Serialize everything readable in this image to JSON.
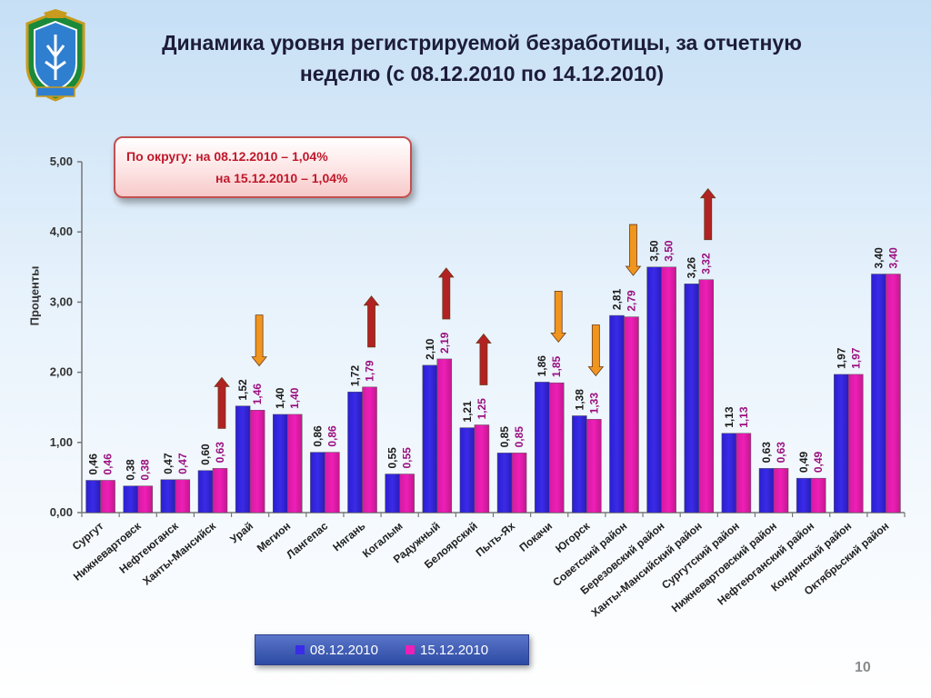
{
  "title": {
    "line1": "Динамика уровня регистрируемой безработицы, за отчетную",
    "line2": "неделю (с 08.12.2010 по 14.12.2010)"
  },
  "callout": {
    "line1": "По округу:  на 08.12.2010 – 1,04%",
    "line2": "на 15.12.2010 – 1,04%"
  },
  "page_number": "10",
  "colors": {
    "series1": "#3a2be8",
    "series2": "#ee1fb6",
    "label1": "#1c1c1c",
    "label2": "#9b0f7f",
    "arrow_up": "#b22222",
    "arrow_down": "#f0951e"
  },
  "chart_data": {
    "type": "bar",
    "ylabel": "Проценты",
    "xlabel": "",
    "ylim": [
      0,
      5
    ],
    "yticks": [
      "0,00",
      "1,00",
      "2,00",
      "3,00",
      "4,00",
      "5,00"
    ],
    "grid": false,
    "legend_position": "bottom",
    "categories": [
      "Сургут",
      "Нижневартовск",
      "Нефтеюганск",
      "Ханты-Мансийск",
      "Урай",
      "Мегион",
      "Лангепас",
      "Нягань",
      "Когалым",
      "Радужный",
      "Белоярский",
      "Пыть-Ях",
      "Покачи",
      "Югорск",
      "Советский район",
      "Березовский район",
      "Ханты-Мансийский район",
      "Сургутский район",
      "Нижневартовский район",
      "Нефтеюганский район",
      "Кондинский район",
      "Октябрьский район"
    ],
    "series": [
      {
        "name": "08.12.2010",
        "values": [
          0.46,
          0.38,
          0.47,
          0.6,
          1.52,
          1.4,
          0.86,
          1.72,
          0.55,
          2.1,
          1.21,
          0.85,
          1.86,
          1.38,
          2.81,
          3.5,
          3.26,
          1.13,
          0.63,
          0.49,
          1.97,
          3.4
        ],
        "labels": [
          "0,46",
          "0,38",
          "0,47",
          "0,60",
          "1,52",
          "1,40",
          "0,86",
          "1,72",
          "0,55",
          "2,10",
          "1,21",
          "0,85",
          "1,86",
          "1,38",
          "2,81",
          "3,50",
          "3,26",
          "1,13",
          "0,63",
          "0,49",
          "1,97",
          "3,40"
        ]
      },
      {
        "name": "15.12.2010",
        "values": [
          0.46,
          0.38,
          0.47,
          0.63,
          1.46,
          1.4,
          0.86,
          1.79,
          0.55,
          2.19,
          1.25,
          0.85,
          1.85,
          1.33,
          2.79,
          3.5,
          3.32,
          1.13,
          0.63,
          0.49,
          1.97,
          3.4
        ],
        "labels": [
          "0,46",
          "0,38",
          "0,47",
          "0,63",
          "1,46",
          "1,40",
          "0,86",
          "1,79",
          "0,55",
          "2,19",
          "1,25",
          "0,85",
          "1,85",
          "1,33",
          "2,79",
          "3,50",
          "3,32",
          "1,13",
          "0,63",
          "0,49",
          "1,97",
          "3,40"
        ]
      }
    ],
    "change_arrows": [
      {
        "category": "Ханты-Мансийск",
        "direction": "up"
      },
      {
        "category": "Урай",
        "direction": "down"
      },
      {
        "category": "Нягань",
        "direction": "up"
      },
      {
        "category": "Радужный",
        "direction": "up"
      },
      {
        "category": "Белоярский",
        "direction": "up"
      },
      {
        "category": "Покачи",
        "direction": "down"
      },
      {
        "category": "Югорск",
        "direction": "down"
      },
      {
        "category": "Советский район",
        "direction": "down"
      },
      {
        "category": "Ханты-Мансийский район",
        "direction": "up"
      }
    ]
  }
}
